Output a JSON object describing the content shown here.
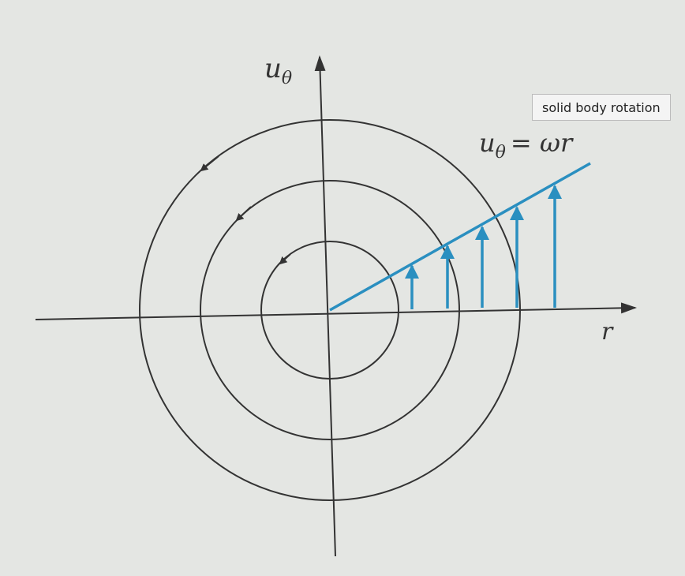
{
  "y_axis_label": {
    "base": "u",
    "sub": "θ"
  },
  "x_axis_label": "r",
  "equation": {
    "base": "u",
    "sub": "θ",
    "rest": "= ωr"
  },
  "tooltip": "solid body rotation"
}
